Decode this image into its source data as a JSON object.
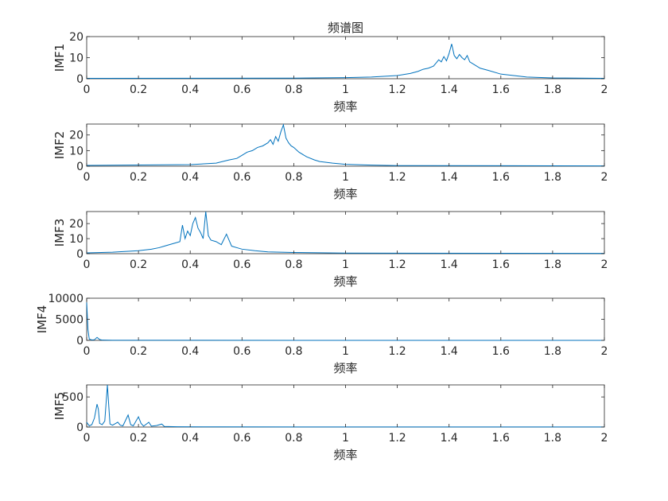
{
  "figure": {
    "title": "频谱图"
  },
  "chart_data": [
    {
      "type": "line",
      "title": "频谱图",
      "xlabel": "频率",
      "ylabel": "IMF1",
      "xlim": [
        0,
        2
      ],
      "ylim": [
        0,
        20
      ],
      "xticks": [
        "0",
        "0.2",
        "0.4",
        "0.6",
        "0.8",
        "1",
        "1.2",
        "1.4",
        "1.6",
        "1.8",
        "2"
      ],
      "yticks": [
        "0",
        "10",
        "20"
      ],
      "color": "#0072BD",
      "series": [
        {
          "x": [
            0,
            0.8,
            1.0,
            1.1,
            1.2,
            1.25,
            1.28,
            1.3,
            1.32,
            1.34,
            1.35,
            1.36,
            1.37,
            1.38,
            1.39,
            1.4,
            1.41,
            1.42,
            1.43,
            1.44,
            1.45,
            1.46,
            1.47,
            1.48,
            1.5,
            1.52,
            1.55,
            1.6,
            1.65,
            1.7,
            1.8,
            2.0
          ],
          "values": [
            0.2,
            0.3,
            0.5,
            0.8,
            1.5,
            2.5,
            3.5,
            4.5,
            5,
            6,
            7.5,
            9,
            8,
            10.5,
            8.5,
            12,
            16.5,
            11,
            9.5,
            11.5,
            10,
            9,
            11,
            8,
            6.5,
            5,
            4,
            2.2,
            1.5,
            0.8,
            0.4,
            0.2
          ]
        }
      ]
    },
    {
      "type": "line",
      "xlabel": "频率",
      "ylabel": "IMF2",
      "xlim": [
        0,
        2
      ],
      "ylim": [
        0,
        27
      ],
      "xticks": [
        "0",
        "0.2",
        "0.4",
        "0.6",
        "0.8",
        "1",
        "1.2",
        "1.4",
        "1.6",
        "1.8",
        "2"
      ],
      "yticks": [
        "0",
        "10",
        "20"
      ],
      "color": "#0072BD",
      "series": [
        {
          "x": [
            0,
            0.4,
            0.5,
            0.55,
            0.58,
            0.6,
            0.62,
            0.64,
            0.66,
            0.68,
            0.7,
            0.71,
            0.72,
            0.73,
            0.74,
            0.75,
            0.76,
            0.77,
            0.78,
            0.79,
            0.8,
            0.82,
            0.85,
            0.88,
            0.9,
            0.95,
            1.0,
            1.1,
            1.2,
            2.0
          ],
          "values": [
            0.5,
            1,
            2,
            4,
            5,
            7,
            9,
            10,
            12,
            13,
            15,
            17,
            14,
            19,
            16,
            22,
            26.5,
            18,
            15,
            13,
            12,
            9,
            6,
            4,
            3,
            2,
            1.2,
            0.7,
            0.4,
            0.2
          ]
        }
      ]
    },
    {
      "type": "line",
      "xlabel": "频率",
      "ylabel": "IMF3",
      "xlim": [
        0,
        2
      ],
      "ylim": [
        0,
        28
      ],
      "xticks": [
        "0",
        "0.2",
        "0.4",
        "0.6",
        "0.8",
        "1",
        "1.2",
        "1.4",
        "1.6",
        "1.8",
        "2"
      ],
      "yticks": [
        "0",
        "10",
        "20"
      ],
      "color": "#0072BD",
      "series": [
        {
          "x": [
            0,
            0.1,
            0.2,
            0.25,
            0.28,
            0.3,
            0.32,
            0.34,
            0.36,
            0.37,
            0.38,
            0.39,
            0.4,
            0.41,
            0.42,
            0.43,
            0.44,
            0.45,
            0.46,
            0.47,
            0.48,
            0.5,
            0.52,
            0.54,
            0.56,
            0.58,
            0.6,
            0.65,
            0.7,
            0.8,
            1.0,
            2.0
          ],
          "values": [
            0.5,
            1,
            2,
            3,
            4,
            5,
            6,
            7,
            8,
            19,
            10,
            15,
            12,
            20,
            24,
            17,
            14,
            10,
            28,
            12,
            9,
            8,
            6,
            13,
            5,
            4,
            3,
            2,
            1.2,
            0.8,
            0.4,
            0.2
          ]
        }
      ]
    },
    {
      "type": "line",
      "xlabel": "频率",
      "ylabel": "IMF4",
      "xlim": [
        0,
        2
      ],
      "ylim": [
        0,
        10000
      ],
      "xticks": [
        "0",
        "0.2",
        "0.4",
        "0.6",
        "0.8",
        "1",
        "1.2",
        "1.4",
        "1.6",
        "1.8",
        "2"
      ],
      "yticks": [
        "0",
        "5000",
        "10000"
      ],
      "color": "#0072BD",
      "series": [
        {
          "x": [
            0,
            0.005,
            0.01,
            0.02,
            0.03,
            0.04,
            0.05,
            0.06,
            0.1,
            0.2,
            1.0,
            2.0
          ],
          "values": [
            9000,
            2500,
            300,
            100,
            150,
            700,
            200,
            60,
            30,
            15,
            5,
            2
          ]
        }
      ]
    },
    {
      "type": "line",
      "xlabel": "频率",
      "ylabel": "IMF5",
      "xlim": [
        0,
        2
      ],
      "ylim": [
        0,
        700
      ],
      "xticks": [
        "0",
        "0.2",
        "0.4",
        "0.6",
        "0.8",
        "1",
        "1.2",
        "1.4",
        "1.6",
        "1.8",
        "2"
      ],
      "yticks": [
        "0",
        "500"
      ],
      "color": "#0072BD",
      "series": [
        {
          "x": [
            0,
            0.01,
            0.02,
            0.03,
            0.04,
            0.045,
            0.05,
            0.06,
            0.07,
            0.08,
            0.09,
            0.1,
            0.12,
            0.13,
            0.14,
            0.16,
            0.17,
            0.18,
            0.2,
            0.21,
            0.22,
            0.24,
            0.25,
            0.27,
            0.29,
            0.3,
            0.35,
            0.5,
            1.0,
            2.0
          ],
          "values": [
            80,
            20,
            40,
            150,
            380,
            300,
            60,
            40,
            100,
            700,
            50,
            30,
            80,
            30,
            20,
            200,
            40,
            20,
            170,
            60,
            15,
            80,
            15,
            25,
            50,
            10,
            5,
            3,
            2,
            1
          ]
        }
      ]
    }
  ]
}
